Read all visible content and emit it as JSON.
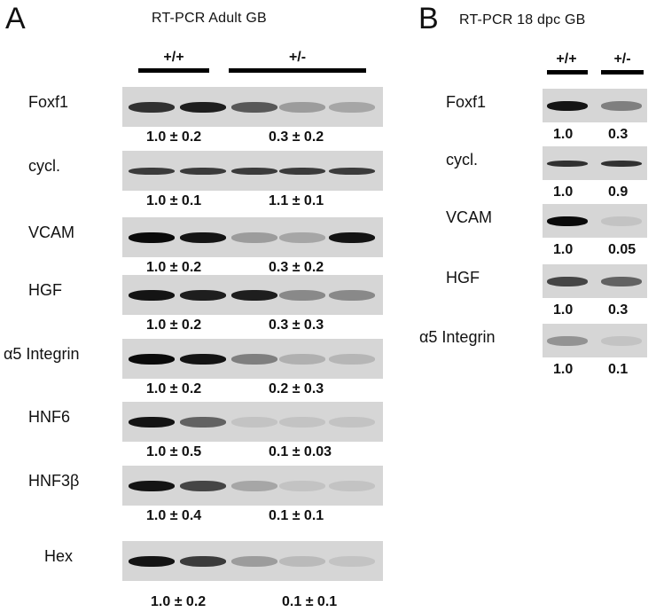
{
  "panelA": {
    "letter": "A",
    "title": "RT-PCR Adult GB",
    "genotypes": [
      "+/+",
      "+/-"
    ],
    "genes": [
      "Foxf1",
      "cycl.",
      "VCAM",
      "HGF",
      "α5 Integrin",
      "HNF6",
      "HNF3β",
      "Hex"
    ],
    "values_wt": [
      "1.0 ± 0.2",
      "1.0 ± 0.1",
      "1.0 ± 0.2",
      "1.0 ± 0.2",
      "1.0 ± 0.2",
      "1.0 ± 0.5",
      "1.0 ± 0.4",
      "1.0 ± 0.2"
    ],
    "values_het": [
      "0.3 ± 0.2",
      "1.1 ± 0.1",
      "0.3 ± 0.2",
      "0.3 ± 0.3",
      "0.2 ± 0.3",
      "0.1 ± 0.03",
      "0.1 ± 0.1",
      "0.1 ± 0.1"
    ],
    "band_intensity": [
      [
        0.8,
        0.9,
        0.6,
        0.25,
        0.2
      ],
      [
        0.75,
        0.75,
        0.75,
        0.75,
        0.75
      ],
      [
        1.0,
        0.95,
        0.25,
        0.2,
        0.95
      ],
      [
        0.95,
        0.9,
        0.9,
        0.35,
        0.35
      ],
      [
        1.0,
        0.95,
        0.4,
        0.15,
        0.12
      ],
      [
        0.95,
        0.55,
        0.05,
        0.05,
        0.05
      ],
      [
        0.95,
        0.7,
        0.2,
        0.05,
        0.05
      ],
      [
        0.95,
        0.75,
        0.25,
        0.1,
        0.05
      ]
    ]
  },
  "panelB": {
    "letter": "B",
    "title": "RT-PCR 18 dpc GB",
    "genotypes": [
      "+/+",
      "+/-"
    ],
    "genes": [
      "Foxf1",
      "cycl.",
      "VCAM",
      "HGF",
      "α5 Integrin"
    ],
    "values_wt": [
      "1.0",
      "1.0",
      "1.0",
      "1.0",
      "1.0"
    ],
    "values_het": [
      "0.3",
      "0.9",
      "0.05",
      "0.3",
      "0.1"
    ],
    "band_intensity": [
      [
        0.95,
        0.4
      ],
      [
        0.8,
        0.8
      ],
      [
        1.0,
        0.05
      ],
      [
        0.7,
        0.55
      ],
      [
        0.3,
        0.05
      ]
    ]
  }
}
